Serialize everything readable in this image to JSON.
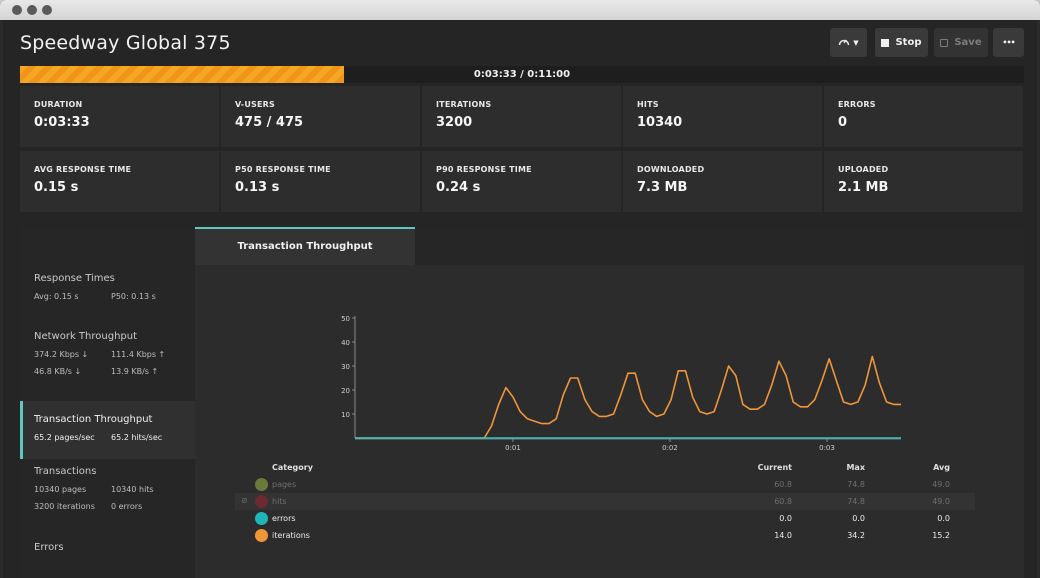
{
  "window": {
    "title": ""
  },
  "header": {
    "title": "Speedway Global 375",
    "stop_label": "Stop",
    "save_label": "Save",
    "more_label": "•••",
    "gauge_icon": "gauge-icon"
  },
  "progress": {
    "text": "0:03:33 / 0:11:00",
    "fraction": 0.3227
  },
  "stats": [
    {
      "label": "DURATION",
      "value": "0:03:33"
    },
    {
      "label": "V-USERS",
      "value": "475 / 475"
    },
    {
      "label": "ITERATIONS",
      "value": "3200"
    },
    {
      "label": "HITS",
      "value": "10340"
    },
    {
      "label": "ERRORS",
      "value": "0"
    },
    {
      "label": "AVG RESPONSE TIME",
      "value": "0.15 s"
    },
    {
      "label": "P50 RESPONSE TIME",
      "value": "0.13 s"
    },
    {
      "label": "P90 RESPONSE TIME",
      "value": "0.24 s"
    },
    {
      "label": "DOWNLOADED",
      "value": "7.3 MB"
    },
    {
      "label": "UPLOADED",
      "value": "2.1 MB"
    }
  ],
  "sidebar": {
    "items": [
      {
        "title": "Response Times",
        "rows": [
          [
            "Avg: 0.15 s",
            "P50: 0.13 s"
          ]
        ]
      },
      {
        "title": "Network Throughput",
        "rows": [
          [
            "374.2 Kbps ↓",
            "111.4 Kbps ↑"
          ],
          [
            "46.8 KB/s ↓",
            "13.9 KB/s ↑"
          ]
        ]
      },
      {
        "title": "Transaction Throughput",
        "rows": [
          [
            "65.2 pages/sec",
            "65.2 hits/sec"
          ]
        ]
      },
      {
        "title": "Transactions",
        "rows": [
          [
            "10340 pages",
            "10340 hits"
          ],
          [
            "3200 iterations",
            "0 errors"
          ]
        ]
      },
      {
        "title": "Errors",
        "rows": []
      }
    ],
    "active_index": 2
  },
  "tab": {
    "label": "Transaction Throughput"
  },
  "chart_data": {
    "type": "line",
    "title": "",
    "xlabel": "",
    "ylabel": "",
    "ylim": [
      0,
      50
    ],
    "yticks": [
      10,
      20,
      30,
      40,
      50
    ],
    "xticks": [
      "0:01",
      "0:02",
      "0:03"
    ],
    "grid": false,
    "series": [
      {
        "name": "iterations",
        "color": "#f0953a",
        "points": [
          [
            0,
            0
          ],
          [
            5,
            0
          ],
          [
            10,
            0
          ],
          [
            15,
            0
          ],
          [
            18,
            0
          ],
          [
            19,
            5
          ],
          [
            20,
            14
          ],
          [
            21,
            21
          ],
          [
            22,
            17
          ],
          [
            23,
            11
          ],
          [
            24,
            8
          ],
          [
            25,
            7
          ],
          [
            26,
            6
          ],
          [
            27,
            6
          ],
          [
            28,
            8
          ],
          [
            29,
            18
          ],
          [
            30,
            25
          ],
          [
            31,
            25
          ],
          [
            32,
            16
          ],
          [
            33,
            11
          ],
          [
            34,
            9
          ],
          [
            35,
            9
          ],
          [
            36,
            10
          ],
          [
            37,
            18
          ],
          [
            38,
            27
          ],
          [
            39,
            27
          ],
          [
            40,
            16
          ],
          [
            41,
            11
          ],
          [
            42,
            9
          ],
          [
            43,
            10
          ],
          [
            44,
            16
          ],
          [
            45,
            28
          ],
          [
            46,
            28
          ],
          [
            47,
            17
          ],
          [
            48,
            11
          ],
          [
            49,
            10
          ],
          [
            50,
            11
          ],
          [
            51,
            20
          ],
          [
            52,
            30
          ],
          [
            53,
            26
          ],
          [
            54,
            14
          ],
          [
            55,
            12
          ],
          [
            56,
            12
          ],
          [
            57,
            14
          ],
          [
            58,
            22
          ],
          [
            59,
            32
          ],
          [
            60,
            26
          ],
          [
            61,
            15
          ],
          [
            62,
            13
          ],
          [
            63,
            13
          ],
          [
            64,
            16
          ],
          [
            65,
            24
          ],
          [
            66,
            33
          ],
          [
            67,
            24
          ],
          [
            68,
            15
          ],
          [
            69,
            14
          ],
          [
            70,
            15
          ],
          [
            71,
            22
          ],
          [
            72,
            34
          ],
          [
            73,
            23
          ],
          [
            74,
            15
          ],
          [
            75,
            14
          ],
          [
            76,
            14
          ]
        ]
      },
      {
        "name": "errors",
        "color": "#2ec6c6",
        "points": [
          [
            0,
            0
          ],
          [
            76,
            0
          ]
        ]
      }
    ],
    "x_range": [
      0,
      76
    ]
  },
  "table": {
    "headers": [
      "Category",
      "Current",
      "Max",
      "Avg"
    ],
    "rows": [
      {
        "name": "pages",
        "current": "60.8",
        "max": "74.8",
        "avg": "49.0",
        "color": "#6b7a3a",
        "muted": true
      },
      {
        "name": "hits",
        "current": "60.8",
        "max": "74.8",
        "avg": "49.0",
        "color": "#6a2a30",
        "muted": true
      },
      {
        "name": "errors",
        "current": "0.0",
        "max": "0.0",
        "avg": "0.0",
        "color": "#1fb6b8",
        "muted": false
      },
      {
        "name": "iterations",
        "current": "14.0",
        "max": "34.2",
        "avg": "15.2",
        "color": "#f0953a",
        "muted": false
      }
    ]
  }
}
